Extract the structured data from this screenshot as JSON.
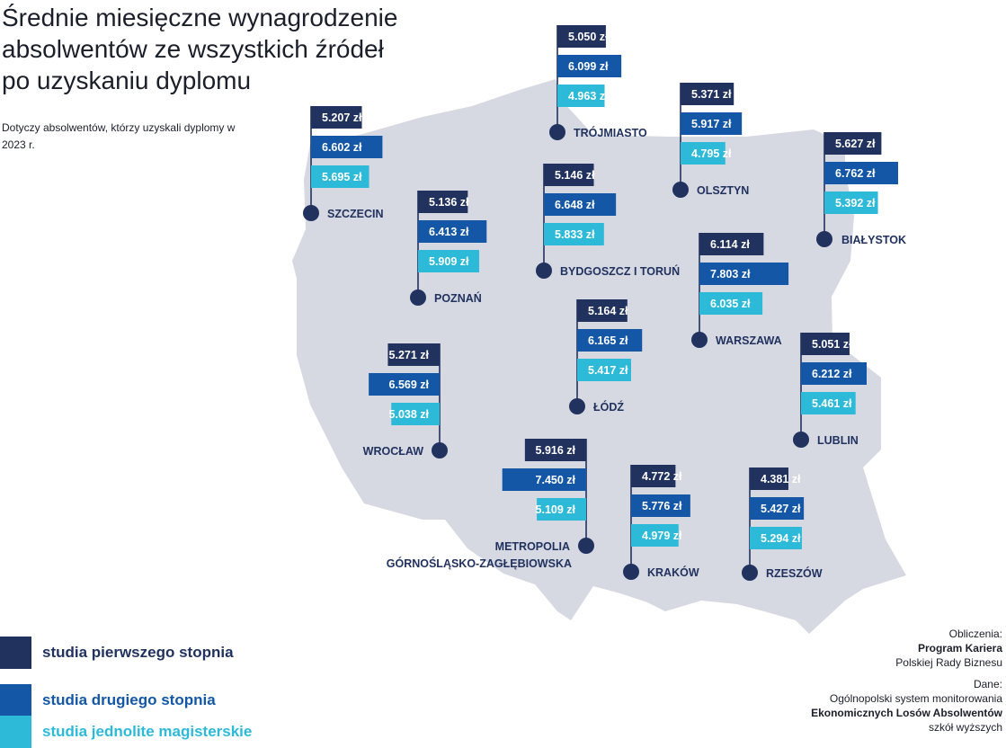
{
  "title": "Średnie miesięczne wynagrodzenie absolwentów ze wszystkich źródeł po uzyskaniu dyplomu",
  "subtitle": "Dotyczy absolwentów, którzy uzyskali dyplomy w 2023 r.",
  "colors": {
    "first": "#21325f",
    "second": "#1357a6",
    "uniform": "#2cbad8",
    "map": "#d6d8e2",
    "text": "#1f2d5c"
  },
  "legend": [
    {
      "key": "first",
      "label": "studia pierwszego stopnia"
    },
    {
      "key": "second",
      "label": "studia drugiego stopnia"
    },
    {
      "key": "uniform",
      "label": "studia jednolite magisterskie"
    }
  ],
  "credits": {
    "calc_label": "Obliczenia:",
    "calc_org": "Program Kariera",
    "calc_org2": "Polskiej Rady Biznesu",
    "data_label": "Dane:",
    "data_src1": "Ogólnopolski system monitorowania",
    "data_src2": "Ekonomicznych Losów Absolwentów",
    "data_src3": "szkół wyższych"
  },
  "chart_data": {
    "type": "bar",
    "title": "Średnie miesięczne wynagrodzenie absolwentów ze wszystkich źródeł po uzyskaniu dyplomu",
    "unit": "zł",
    "series": [
      {
        "key": "first",
        "name": "studia pierwszego stopnia"
      },
      {
        "key": "second",
        "name": "studia drugiego stopnia"
      },
      {
        "key": "uniform",
        "name": "studia jednolite magisterskie"
      }
    ],
    "cities": [
      {
        "id": "szczecin",
        "name": "SZCZECIN",
        "values": [
          5207,
          6602,
          5695
        ],
        "labels": [
          "5.207 zł",
          "6.602 zł",
          "5.695 zł"
        ]
      },
      {
        "id": "trojmiasto",
        "name": "TRÓJMIASTO",
        "values": [
          5050,
          6099,
          4963
        ],
        "labels": [
          "5.050 zł",
          "6.099 zł",
          "4.963 zł"
        ]
      },
      {
        "id": "olsztyn",
        "name": "OLSZTYN",
        "values": [
          5371,
          5917,
          4795
        ],
        "labels": [
          "5.371 zł",
          "5.917 zł",
          "4.795 zł"
        ]
      },
      {
        "id": "bialystok",
        "name": "BIAŁYSTOK",
        "values": [
          5627,
          6762,
          5392
        ],
        "labels": [
          "5.627 zł",
          "6.762 zł",
          "5.392 zł"
        ]
      },
      {
        "id": "bydgoszcz",
        "name": "BYDGOSZCZ I TORUŃ",
        "values": [
          5146,
          6648,
          5833
        ],
        "labels": [
          "5.146 zł",
          "6.648 zł",
          "5.833 zł"
        ]
      },
      {
        "id": "poznan",
        "name": "POZNAŃ",
        "values": [
          5136,
          6413,
          5909
        ],
        "labels": [
          "5.136 zł",
          "6.413 zł",
          "5.909 zł"
        ]
      },
      {
        "id": "warszawa",
        "name": "WARSZAWA",
        "values": [
          6114,
          7803,
          6035
        ],
        "labels": [
          "6.114 zł",
          "7.803 zł",
          "6.035 zł"
        ]
      },
      {
        "id": "lodz",
        "name": "ŁÓDŹ",
        "values": [
          5164,
          6165,
          5417
        ],
        "labels": [
          "5.164 zł",
          "6.165 zł",
          "5.417 zł"
        ]
      },
      {
        "id": "lublin",
        "name": "LUBLIN",
        "values": [
          5051,
          6212,
          5461
        ],
        "labels": [
          "5.051 zł",
          "6.212 zł",
          "5.461 zł"
        ]
      },
      {
        "id": "wroclaw",
        "name": "WROCŁAW",
        "values": [
          5271,
          6569,
          5038
        ],
        "labels": [
          "5.271 zł",
          "6.569 zł",
          "5.038 zł"
        ]
      },
      {
        "id": "metropolia",
        "name": "METROPOLIA",
        "name2": "GÓRNOŚLĄSKO-ZAGŁĘBIOWSKA",
        "values": [
          5916,
          7450,
          5109
        ],
        "labels": [
          "5.916 zł",
          "7.450 zł",
          "5.109 zł"
        ]
      },
      {
        "id": "krakow",
        "name": "KRAKÓW",
        "values": [
          4772,
          5776,
          4979
        ],
        "labels": [
          "4.772 zł",
          "5.776 zł",
          "4.979 zł"
        ]
      },
      {
        "id": "rzeszow",
        "name": "RZESZÓW",
        "values": [
          4381,
          5427,
          5294
        ],
        "labels": [
          "4.381 zł",
          "5.427 zł",
          "5.294 zł"
        ]
      }
    ]
  }
}
